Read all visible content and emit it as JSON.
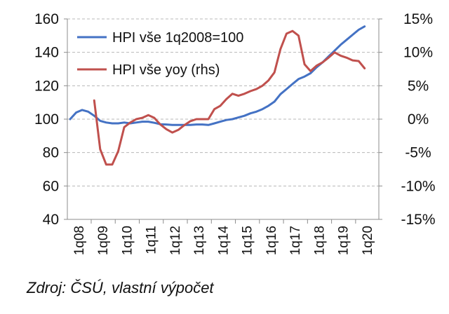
{
  "source_note": "Zdroj: ČSÚ, vlastní výpočet",
  "chart_data": {
    "type": "line",
    "title": "",
    "xlabel": "",
    "ylabel": "",
    "y2label": "",
    "grid": "horizontal dashed",
    "legend_position": "top-left",
    "x_tick_labels": [
      "1q08",
      "1q09",
      "1q10",
      "1q11",
      "1q12",
      "1q13",
      "1q14",
      "1q15",
      "1q16",
      "1q17",
      "1q18",
      "1q19",
      "1q20"
    ],
    "y_left": {
      "ylim": [
        40,
        160
      ],
      "ticks": [
        40,
        60,
        80,
        100,
        120,
        140,
        160
      ],
      "tick_labels": [
        "40",
        "60",
        "80",
        "100",
        "120",
        "140",
        "160"
      ]
    },
    "y_right": {
      "ylim": [
        -15,
        15
      ],
      "ticks": [
        -15,
        -10,
        -5,
        0,
        5,
        10,
        15
      ],
      "tick_labels": [
        "-15%",
        "-10%",
        "-5%",
        "0%",
        "5%",
        "10%",
        "15%"
      ]
    },
    "colors": {
      "hpi": "#4472C4",
      "yoy": "#C0504D"
    },
    "series": [
      {
        "name": "HPI vše 1q2008=100",
        "axis": "left",
        "x": [
          "1q08",
          "2q08",
          "3q08",
          "4q08",
          "1q09",
          "2q09",
          "3q09",
          "4q09",
          "1q10",
          "2q10",
          "3q10",
          "4q10",
          "1q11",
          "2q11",
          "3q11",
          "4q11",
          "1q12",
          "2q12",
          "3q12",
          "4q12",
          "1q13",
          "2q13",
          "3q13",
          "4q13",
          "1q14",
          "2q14",
          "3q14",
          "4q14",
          "1q15",
          "2q15",
          "3q15",
          "4q15",
          "1q16",
          "2q16",
          "3q16",
          "4q16",
          "1q17",
          "2q17",
          "3q17",
          "4q17",
          "1q18",
          "2q18",
          "3q18",
          "4q18",
          "1q19",
          "2q19",
          "3q19",
          "4q19",
          "1q20",
          "2q20"
        ],
        "values": [
          100,
          104,
          105.5,
          104.5,
          102,
          99,
          98,
          97.5,
          97.5,
          98,
          97.5,
          98,
          98.5,
          98.5,
          97.8,
          97,
          96.8,
          96.5,
          96.5,
          96.5,
          96.5,
          96.8,
          96.8,
          96.5,
          97.5,
          98.5,
          99.5,
          100,
          101,
          102,
          103.5,
          104.5,
          106,
          108,
          110.5,
          115,
          118,
          121,
          124,
          125.5,
          127.5,
          131,
          134,
          137.5,
          141,
          144.5,
          147.5,
          150.5,
          153.5,
          155.5
        ]
      },
      {
        "name": "HPI vše yoy (rhs)",
        "axis": "right",
        "x": [
          "1q09",
          "2q09",
          "3q09",
          "4q09",
          "1q10",
          "2q10",
          "3q10",
          "4q10",
          "1q11",
          "2q11",
          "3q11",
          "4q11",
          "1q12",
          "2q12",
          "3q12",
          "4q12",
          "1q13",
          "2q13",
          "3q13",
          "4q13",
          "1q14",
          "2q14",
          "3q14",
          "4q14",
          "1q15",
          "2q15",
          "3q15",
          "4q15",
          "1q16",
          "2q16",
          "3q16",
          "4q16",
          "1q17",
          "2q17",
          "3q17",
          "4q17",
          "1q18",
          "2q18",
          "3q18",
          "4q18",
          "1q19",
          "2q19",
          "3q19",
          "4q19",
          "1q20",
          "2q20"
        ],
        "values": [
          2.8,
          -4.5,
          -6.8,
          -6.8,
          -4.8,
          -1.2,
          -0.5,
          0,
          0.2,
          0.6,
          0.2,
          -0.8,
          -1.5,
          -2,
          -1.6,
          -0.9,
          -0.3,
          0,
          0,
          0,
          1.5,
          2,
          3,
          3.8,
          3.5,
          3.8,
          4.2,
          4.5,
          5,
          5.8,
          7,
          10.5,
          12.8,
          13.2,
          12.5,
          8.2,
          7.2,
          8,
          8.5,
          9.2,
          10,
          9.5,
          9.2,
          8.8,
          8.7,
          7.6
        ]
      }
    ]
  }
}
